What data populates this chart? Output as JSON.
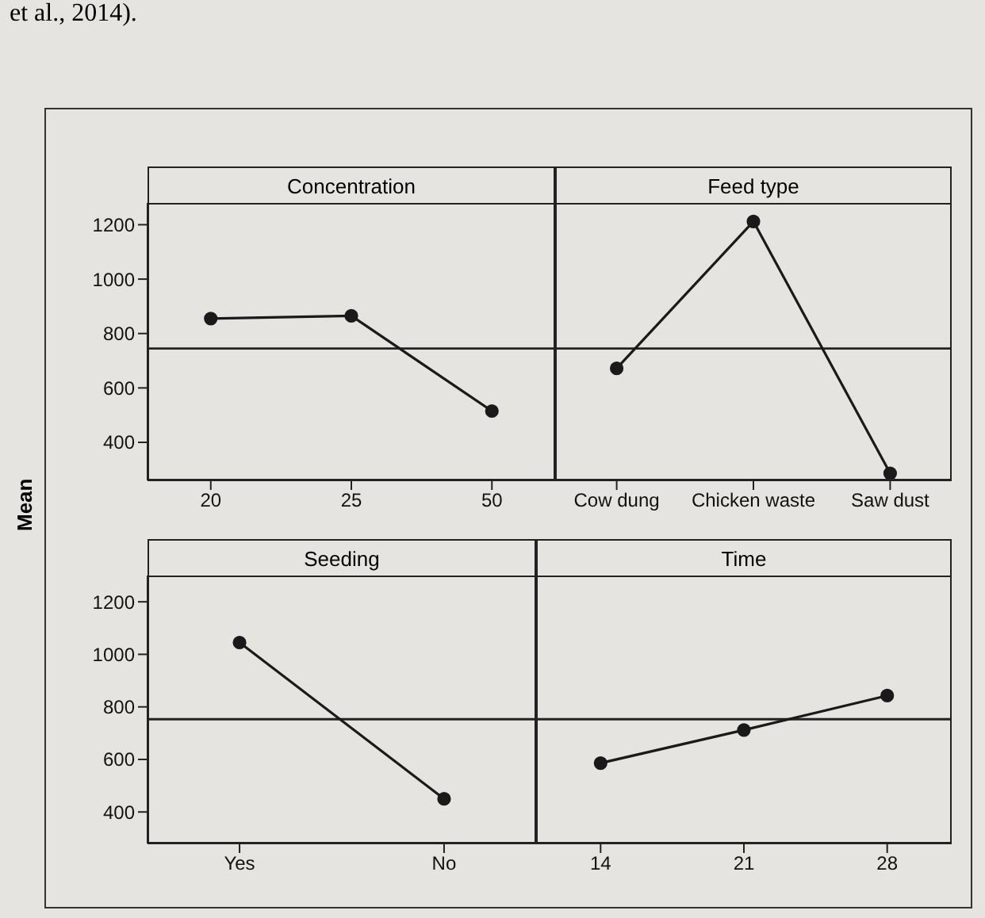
{
  "chart_data": [
    {
      "type": "line",
      "title": "Concentration",
      "ylabel": "Mean",
      "annotations": [
        "et al., 2014)."
      ],
      "categories": [
        "20",
        "25",
        "50"
      ],
      "series": [
        {
          "color": "#1a1a1a",
          "values": [
            855,
            865,
            515
          ]
        }
      ],
      "ylim": [
        260,
        1280
      ],
      "yticks": [
        400,
        600,
        800,
        1000,
        1200
      ],
      "ref_lines": [
        {
          "axis": "y",
          "value": 745
        }
      ],
      "marker": "circle",
      "grid": false,
      "legend": false
    },
    {
      "type": "line",
      "title": "Feed type",
      "categories": [
        "Cow dung",
        "Chicken waste",
        "Saw dust"
      ],
      "series": [
        {
          "color": "#1a1a1a",
          "values": [
            672,
            1212,
            286
          ]
        }
      ],
      "ylim": [
        260,
        1280
      ],
      "yticks": [
        400,
        600,
        800,
        1000,
        1200
      ],
      "tick_labels": "x",
      "ref_lines": [
        {
          "axis": "y",
          "value": 745
        }
      ],
      "marker": "circle",
      "grid": false,
      "legend": false
    },
    {
      "type": "line",
      "title": "Seeding",
      "categories": [
        "Yes",
        "No"
      ],
      "series": [
        {
          "color": "#1a1a1a",
          "values": [
            1045,
            450
          ]
        }
      ],
      "ylim": [
        280,
        1300
      ],
      "yticks": [
        400,
        600,
        800,
        1000,
        1200
      ],
      "ref_lines": [
        {
          "axis": "y",
          "value": 753
        }
      ],
      "marker": "circle",
      "grid": false,
      "legend": false
    },
    {
      "type": "line",
      "title": "Time",
      "categories": [
        "14",
        "21",
        "28"
      ],
      "series": [
        {
          "color": "#1a1a1a",
          "values": [
            586,
            712,
            843
          ]
        }
      ],
      "ylim": [
        280,
        1300
      ],
      "yticks": [
        400,
        600,
        800,
        1000,
        1200
      ],
      "tick_labels": "x",
      "ref_lines": [
        {
          "axis": "y",
          "value": 753
        }
      ],
      "marker": "circle",
      "grid": false,
      "legend": false
    }
  ]
}
